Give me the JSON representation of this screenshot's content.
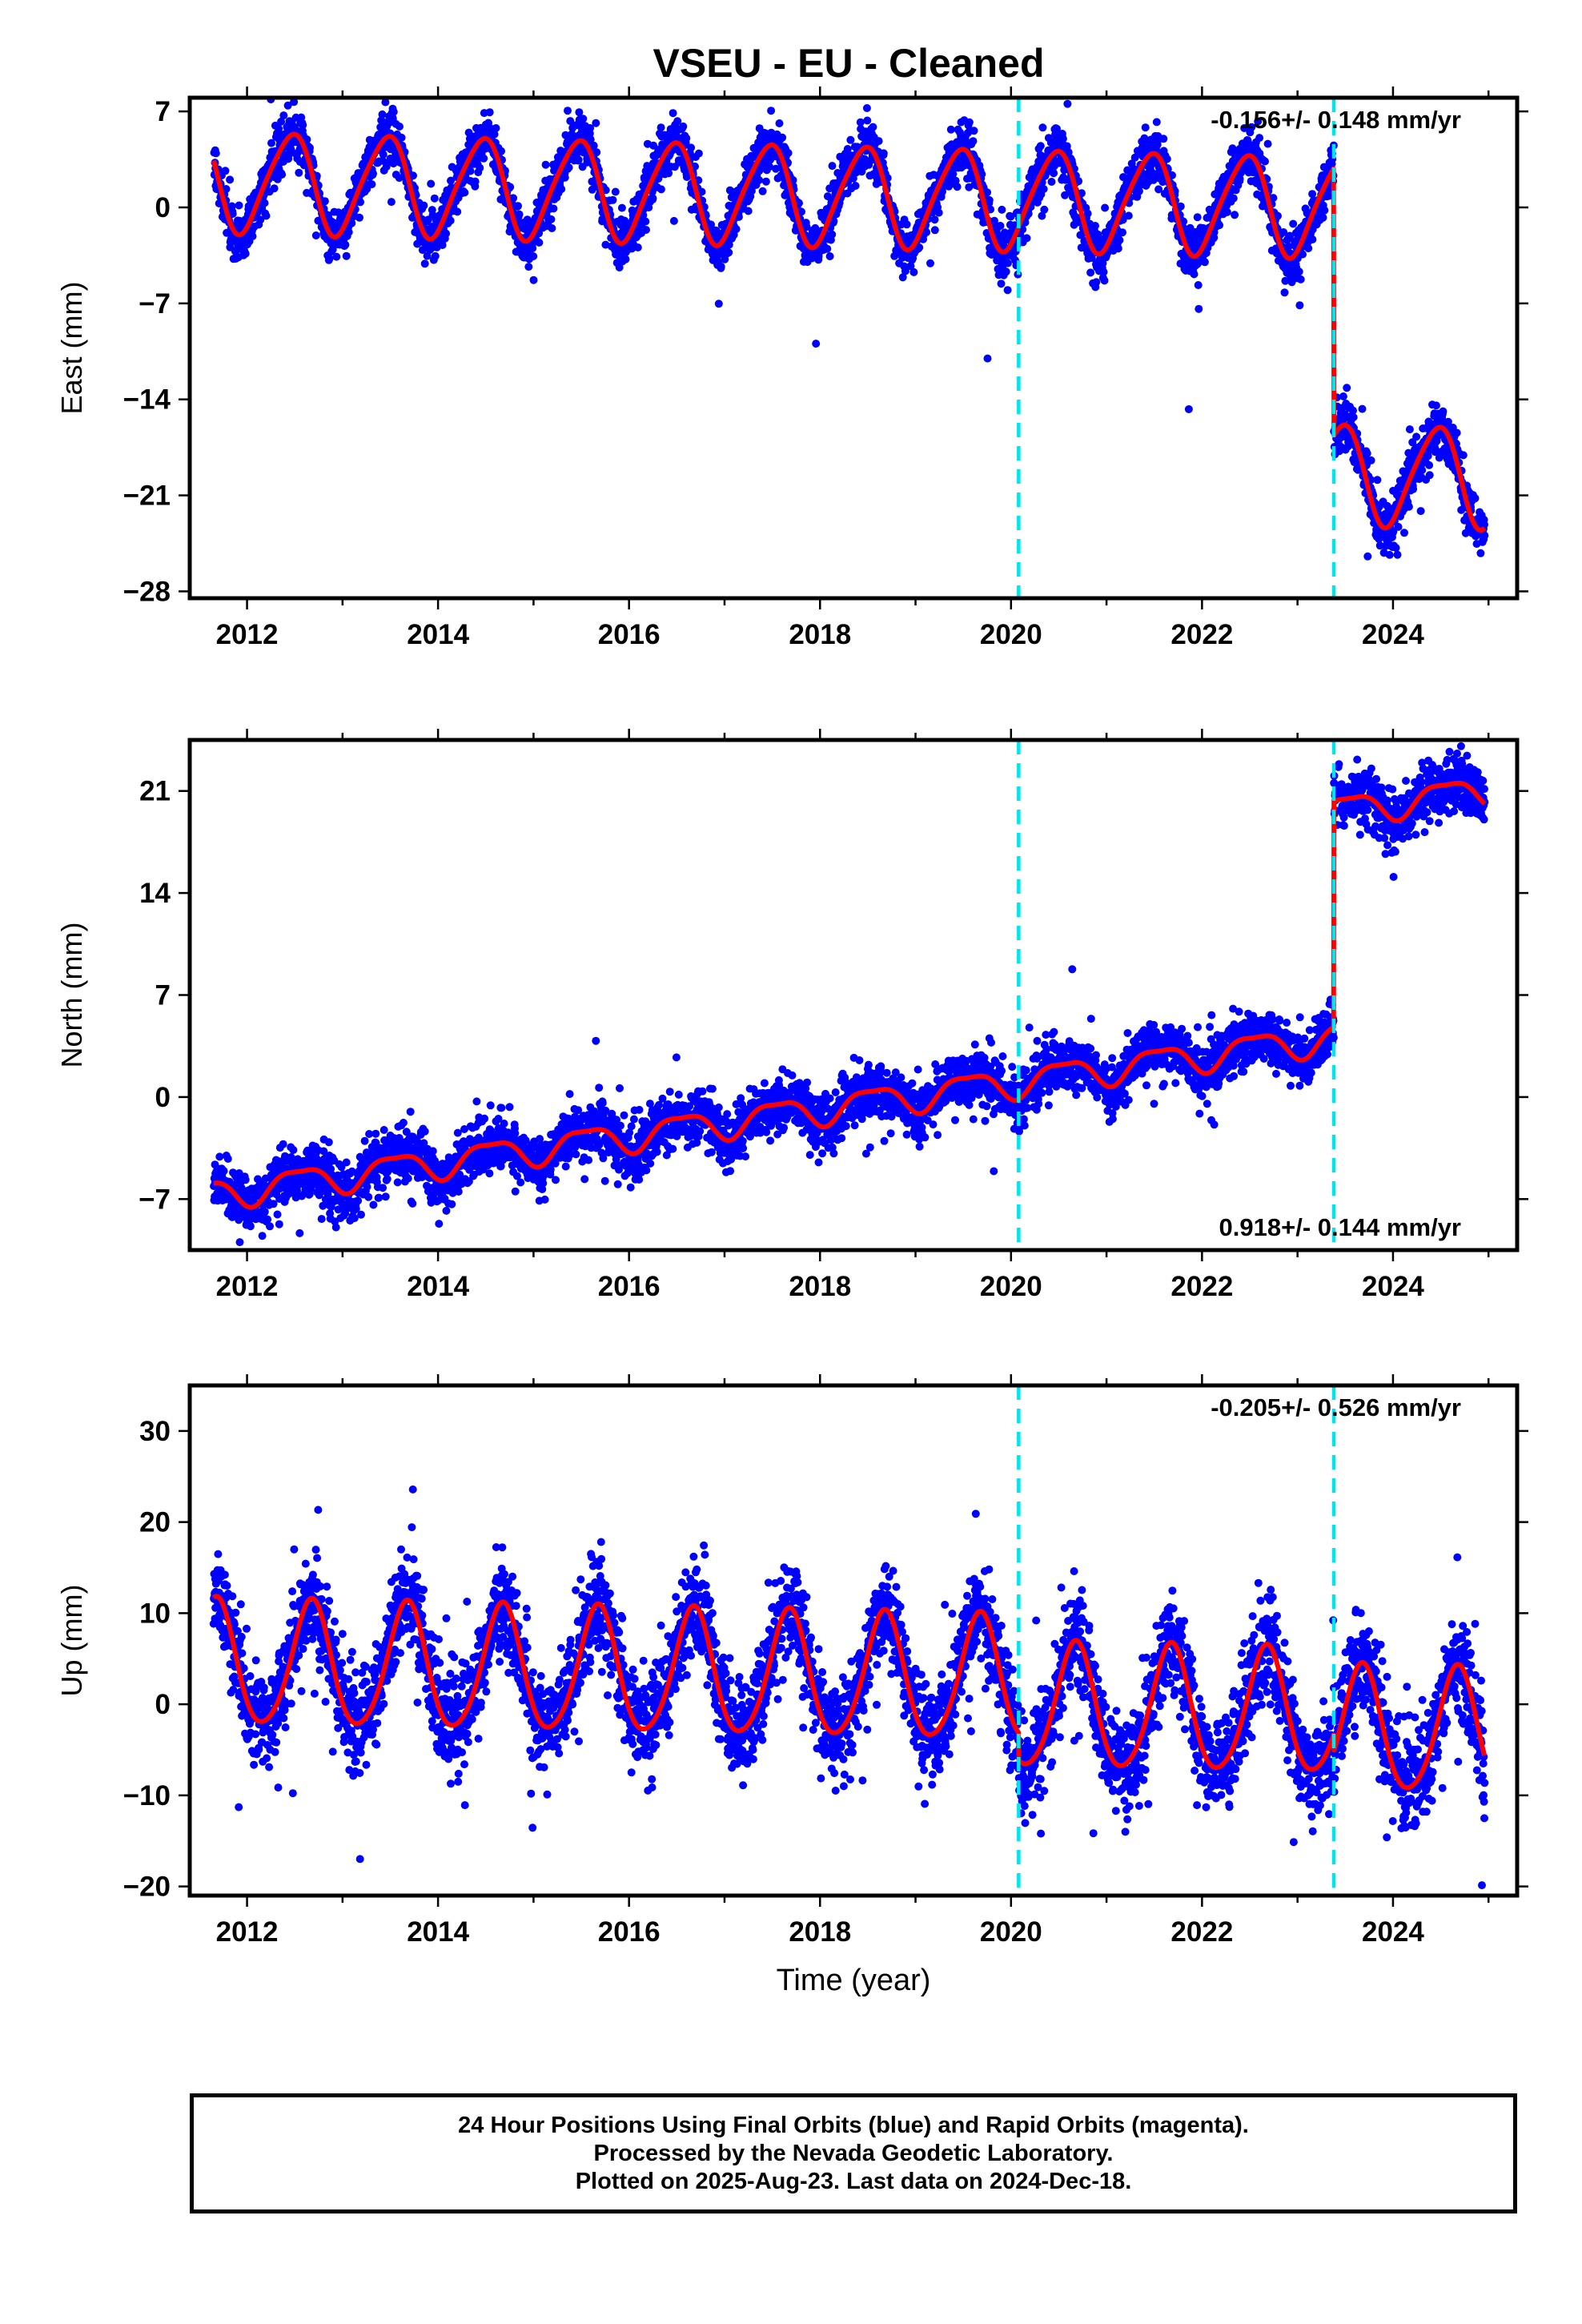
{
  "title": "VSEU  - EU - Cleaned",
  "footer": {
    "lines": [
      "24 Hour Positions Using Final Orbits (blue) and Rapid Orbits (magenta).",
      "Processed by the Nevada Geodetic Laboratory.",
      "Plotted on 2025-Aug-23. Last data on 2024-Dec-18."
    ]
  },
  "colors": {
    "points": "#0000ff",
    "model": "#ff0000",
    "event_lines": "#00e5ee",
    "axes": "#000000"
  },
  "chart_data": [
    {
      "type": "scatter",
      "component": "East",
      "ylabel": "East (mm)",
      "xlabel": "",
      "xlim": [
        2011.4,
        2025.3
      ],
      "ylim": [
        -28.5,
        8
      ],
      "xticks": [
        2012,
        2014,
        2016,
        2018,
        2020,
        2022,
        2024
      ],
      "yticks": [
        7,
        0,
        -7,
        -14,
        -21,
        -28
      ],
      "ytick_labels": [
        "7",
        "0",
        "−7",
        "−14",
        "−21",
        "−28"
      ],
      "rate_label": "-0.156+/- 0.148 mm/yr",
      "rate_position": "top-right",
      "event_lines": [
        2020.08,
        2023.38
      ],
      "data_range": [
        2011.65,
        2024.96
      ],
      "model": {
        "offset": 0.9,
        "rate": -0.156,
        "ref_year": 2018,
        "annual_amp": 3.6,
        "annual_peak_year_fraction": 0.45,
        "semiannual_amp": 0.5,
        "semiannual_phase": 0.1,
        "steps": [
          {
            "year": 2023.38,
            "size": -19.5
          }
        ],
        "noise_sd": 0.9,
        "outlier_fraction": 0.02,
        "outlier_sd": 3
      }
    },
    {
      "type": "scatter",
      "component": "North",
      "ylabel": "North (mm)",
      "xlabel": "",
      "xlim": [
        2011.4,
        2025.3
      ],
      "ylim": [
        -10.5,
        24.5
      ],
      "xticks": [
        2012,
        2014,
        2016,
        2018,
        2020,
        2022,
        2024
      ],
      "yticks": [
        21,
        14,
        7,
        0,
        -7
      ],
      "ytick_labels": [
        "21",
        "14",
        "7",
        "0",
        "−7"
      ],
      "rate_label": "0.918+/- 0.144 mm/yr",
      "rate_position": "bottom-right",
      "event_lines": [
        2020.08,
        2023.38
      ],
      "data_range": [
        2011.65,
        2024.96
      ],
      "model": {
        "offset": -0.8,
        "rate": 0.918,
        "ref_year": 2018,
        "annual_amp": 1.0,
        "annual_peak_year_fraction": 0.55,
        "semiannual_amp": 0.3,
        "semiannual_phase": 0.3,
        "steps": [
          {
            "year": 2023.38,
            "size": 15.5
          }
        ],
        "noise_sd": 0.9,
        "outlier_fraction": 0.02,
        "outlier_sd": 2.5
      }
    },
    {
      "type": "scatter",
      "component": "Up",
      "ylabel": "Up (mm)",
      "xlabel": "Time (year)",
      "xlim": [
        2011.4,
        2025.3
      ],
      "ylim": [
        -21,
        35
      ],
      "xticks": [
        2012,
        2014,
        2016,
        2018,
        2020,
        2022,
        2024
      ],
      "yticks": [
        30,
        20,
        10,
        0,
        -10,
        -20
      ],
      "ytick_labels": [
        "30",
        "20",
        "10",
        "0",
        "−10",
        "−20"
      ],
      "rate_label": "-0.205+/- 0.526 mm/yr",
      "rate_position": "top-right",
      "event_lines": [
        2020.08,
        2023.38
      ],
      "data_range": [
        2011.65,
        2024.96
      ],
      "model": {
        "offset": 3.0,
        "rate": -0.205,
        "ref_year": 2018,
        "annual_amp": 6.8,
        "annual_peak_year_fraction": 0.67,
        "semiannual_amp": 0.8,
        "semiannual_phase": 0.2,
        "steps": [
          {
            "year": 2020.08,
            "size": -3.0
          },
          {
            "year": 2023.38,
            "size": -1.8
          }
        ],
        "noise_sd": 2.6,
        "outlier_fraction": 0.03,
        "outlier_sd": 6
      }
    }
  ]
}
